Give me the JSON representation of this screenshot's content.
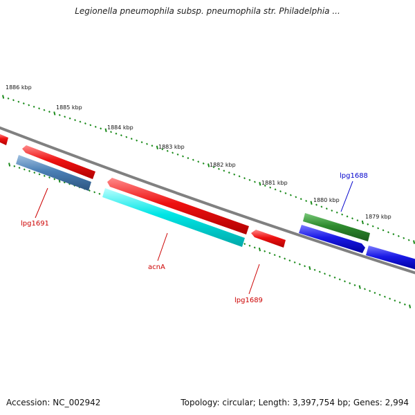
{
  "title": "Legionella pneumophila subsp. pneumophila str. Philadelphia ...",
  "footer": {
    "accession": "Accession: NC_002942",
    "summary": "Topology: circular; Length: 3,397,754 bp; Genes: 2,994"
  },
  "colors": {
    "backbone": "#808080",
    "tick": "#1a8a1a",
    "forward_gene": "#ee1111",
    "reverse_gene_steel": "#4a7fb5",
    "reverse_gene_cyan": "#00e5e5",
    "green_gene": "#2e8b2e",
    "blue_gene": "#1a1ae6",
    "label_red": "#cc0000",
    "label_blue": "#0000cc"
  },
  "scale_labels": [
    "1886 kbp",
    "1885 kbp",
    "1884 kbp",
    "1883 kbp",
    "1882 kbp",
    "1881 kbp",
    "1880 kbp",
    "1879 kbp"
  ],
  "gene_labels": {
    "lpg1691": "lpg1691",
    "acnA": "acnA",
    "lpg1689": "lpg1689",
    "lpg1688": "lpg1688"
  }
}
